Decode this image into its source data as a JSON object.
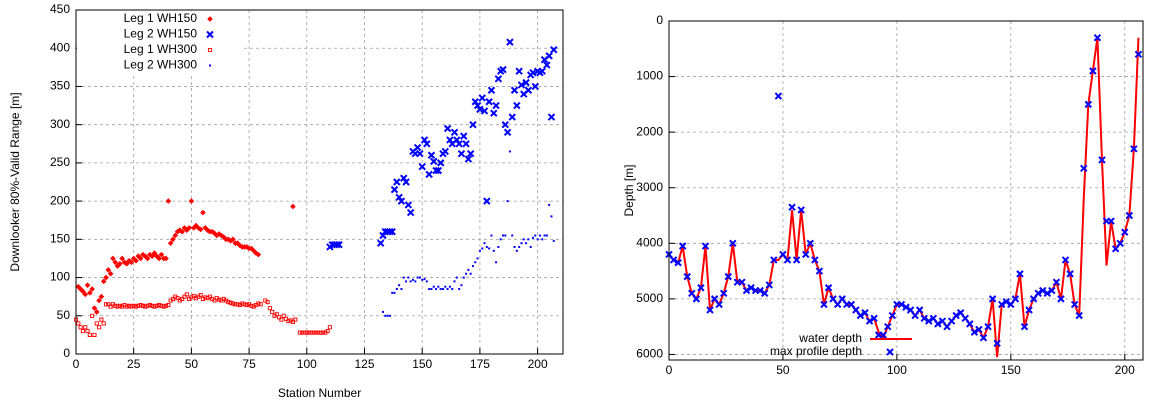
{
  "chart_data": [
    {
      "type": "scatter",
      "x_label": "Station Number",
      "y_label": "Downlooker 80%-Valid Range [m]",
      "xlim": [
        0,
        211
      ],
      "ylim": [
        0,
        450
      ],
      "xticks": [
        0,
        25,
        50,
        75,
        100,
        125,
        150,
        175,
        200
      ],
      "yticks": [
        0,
        50,
        100,
        150,
        200,
        250,
        300,
        350,
        400,
        450
      ],
      "grid": true,
      "legend": "upper left",
      "series": [
        {
          "name": "Leg 1 WH150",
          "color": "#ff0000",
          "marker": "diamond",
          "x": [
            1,
            2,
            3,
            4,
            5,
            6,
            7,
            8,
            9,
            10,
            11,
            12,
            13,
            14,
            15,
            16,
            17,
            18,
            19,
            20,
            21,
            22,
            23,
            24,
            25,
            26,
            27,
            28,
            29,
            30,
            31,
            32,
            33,
            34,
            35,
            36,
            37,
            38,
            39,
            40,
            41,
            42,
            43,
            44,
            45,
            46,
            47,
            48,
            49,
            50,
            51,
            52,
            53,
            54,
            55,
            56,
            57,
            58,
            59,
            60,
            61,
            62,
            63,
            64,
            65,
            66,
            67,
            68,
            69,
            70,
            71,
            72,
            73,
            74,
            75,
            76,
            77,
            78,
            79,
            94
          ],
          "values": [
            88,
            85,
            82,
            78,
            90,
            80,
            85,
            60,
            55,
            70,
            75,
            95,
            100,
            110,
            105,
            125,
            120,
            115,
            118,
            125,
            120,
            118,
            122,
            120,
            125,
            122,
            128,
            125,
            130,
            128,
            125,
            130,
            128,
            132,
            128,
            125,
            130,
            125,
            125,
            200,
            145,
            150,
            155,
            160,
            162,
            160,
            165,
            162,
            165,
            200,
            165,
            168,
            165,
            163,
            185,
            165,
            162,
            160,
            160,
            158,
            155,
            157,
            155,
            153,
            150,
            150,
            148,
            150,
            145,
            145,
            142,
            140,
            140,
            140,
            138,
            138,
            135,
            132,
            130,
            193
          ]
        },
        {
          "name": "Leg 2 WH150",
          "color": "#0000ff",
          "marker": "x",
          "x": [
            110,
            111,
            112,
            113,
            114,
            132,
            133,
            134,
            135,
            136,
            137,
            138,
            139,
            140,
            141,
            142,
            143,
            144,
            145,
            146,
            147,
            148,
            149,
            150,
            151,
            152,
            153,
            154,
            155,
            156,
            157,
            158,
            159,
            160,
            161,
            162,
            163,
            164,
            165,
            166,
            167,
            168,
            169,
            170,
            171,
            172,
            173,
            174,
            175,
            176,
            177,
            178,
            179,
            180,
            181,
            182,
            183,
            184,
            185,
            186,
            187,
            188,
            189,
            190,
            191,
            192,
            193,
            194,
            195,
            196,
            197,
            198,
            199,
            200,
            201,
            202,
            203,
            204,
            205,
            206,
            207
          ],
          "values": [
            140,
            143,
            143,
            143,
            143,
            145,
            155,
            160,
            160,
            160,
            160,
            215,
            225,
            205,
            200,
            230,
            225,
            195,
            185,
            265,
            262,
            270,
            262,
            245,
            280,
            275,
            235,
            260,
            252,
            240,
            240,
            250,
            262,
            265,
            295,
            280,
            275,
            290,
            280,
            275,
            262,
            285,
            275,
            255,
            262,
            300,
            330,
            325,
            320,
            335,
            318,
            200,
            330,
            345,
            315,
            325,
            360,
            370,
            372,
            300,
            290,
            408,
            310,
            345,
            325,
            370,
            352,
            340,
            355,
            345,
            365,
            368,
            350,
            370,
            368,
            370,
            385,
            378,
            390,
            310,
            398
          ]
        },
        {
          "name": "Leg 1 WH300",
          "color": "#ff0000",
          "marker": "square",
          "x": [
            0,
            1,
            2,
            3,
            4,
            5,
            6,
            7,
            8,
            9,
            10,
            11,
            12,
            13,
            14,
            15,
            16,
            17,
            18,
            19,
            20,
            21,
            22,
            23,
            24,
            25,
            26,
            27,
            28,
            29,
            30,
            31,
            32,
            33,
            34,
            35,
            36,
            37,
            38,
            39,
            40,
            41,
            42,
            43,
            44,
            45,
            46,
            47,
            48,
            49,
            50,
            51,
            52,
            53,
            54,
            55,
            56,
            57,
            58,
            59,
            60,
            61,
            62,
            63,
            64,
            65,
            66,
            67,
            68,
            69,
            70,
            71,
            72,
            73,
            74,
            75,
            76,
            77,
            78,
            79,
            80,
            82,
            83,
            84,
            85,
            86,
            87,
            88,
            89,
            90,
            91,
            92,
            93,
            94,
            95,
            97,
            98,
            99,
            100,
            101,
            102,
            103,
            104,
            105,
            106,
            107,
            108,
            109,
            110
          ],
          "values": [
            45,
            40,
            35,
            30,
            35,
            30,
            25,
            50,
            25,
            40,
            35,
            45,
            40,
            65,
            65,
            62,
            65,
            63,
            62,
            63,
            62,
            64,
            62,
            63,
            62,
            63,
            62,
            63,
            64,
            63,
            62,
            63,
            64,
            63,
            62,
            63,
            64,
            63,
            62,
            63,
            64,
            70,
            72,
            75,
            73,
            70,
            72,
            75,
            78,
            72,
            74,
            76,
            73,
            75,
            77,
            72,
            74,
            73,
            75,
            72,
            70,
            73,
            71,
            70,
            72,
            70,
            68,
            67,
            66,
            65,
            65,
            64,
            66,
            65,
            64,
            65,
            63,
            62,
            64,
            66,
            65,
            70,
            68,
            60,
            55,
            50,
            52,
            48,
            45,
            50,
            46,
            43,
            44,
            42,
            45,
            28,
            28,
            28,
            28,
            28,
            28,
            28,
            28,
            28,
            28,
            28,
            28,
            30,
            35
          ]
        },
        {
          "name": "Leg 2 WH300",
          "color": "#0000ff",
          "marker": "dot",
          "x": [
            133,
            134,
            135,
            136,
            137,
            138,
            139,
            140,
            141,
            142,
            143,
            144,
            145,
            146,
            147,
            148,
            149,
            150,
            151,
            152,
            153,
            154,
            155,
            156,
            157,
            158,
            159,
            160,
            161,
            162,
            163,
            164,
            165,
            166,
            167,
            168,
            169,
            170,
            171,
            172,
            173,
            174,
            175,
            176,
            177,
            178,
            179,
            180,
            181,
            182,
            183,
            184,
            185,
            186,
            187,
            188,
            189,
            190,
            191,
            192,
            193,
            194,
            195,
            196,
            197,
            198,
            199,
            200,
            201,
            202,
            203,
            204,
            205,
            206,
            207
          ],
          "values": [
            55,
            50,
            50,
            50,
            80,
            80,
            85,
            90,
            85,
            100,
            95,
            100,
            95,
            97,
            95,
            100,
            100,
            97,
            98,
            95,
            85,
            85,
            88,
            85,
            88,
            85,
            85,
            88,
            85,
            88,
            85,
            95,
            100,
            85,
            90,
            100,
            105,
            110,
            105,
            115,
            120,
            125,
            135,
            138,
            145,
            140,
            138,
            155,
            135,
            120,
            140,
            150,
            155,
            155,
            200,
            265,
            155,
            140,
            135,
            140,
            145,
            150,
            145,
            150,
            140,
            152,
            155,
            150,
            155,
            150,
            155,
            155,
            195,
            180,
            148
          ]
        }
      ]
    },
    {
      "type": "line",
      "y_label": "Depth [m]",
      "xlim": [
        0,
        208
      ],
      "ylim": [
        6100,
        0
      ],
      "xticks": [
        0,
        50,
        100,
        150,
        200
      ],
      "yticks": [
        0,
        1000,
        2000,
        3000,
        4000,
        5000,
        6000
      ],
      "grid": true,
      "legend": "lower center",
      "x": [
        0,
        2,
        4,
        6,
        8,
        10,
        12,
        14,
        16,
        18,
        20,
        22,
        24,
        26,
        28,
        30,
        32,
        34,
        36,
        38,
        40,
        42,
        44,
        46,
        48,
        50,
        52,
        54,
        56,
        58,
        60,
        62,
        64,
        66,
        68,
        70,
        72,
        74,
        76,
        78,
        80,
        82,
        84,
        86,
        88,
        90,
        92,
        94,
        96,
        98,
        100,
        102,
        104,
        106,
        108,
        110,
        112,
        114,
        116,
        118,
        120,
        122,
        124,
        126,
        128,
        130,
        132,
        134,
        136,
        138,
        140,
        142,
        144,
        146,
        148,
        150,
        152,
        154,
        156,
        158,
        160,
        162,
        164,
        166,
        168,
        170,
        172,
        174,
        176,
        178,
        180,
        182,
        184,
        186,
        188,
        190,
        192,
        194,
        196,
        198,
        200,
        202,
        204,
        206
      ],
      "series": [
        {
          "name": "water depth",
          "color": "#ff0000",
          "mode": "line",
          "values": [
            4200,
            4300,
            4350,
            4050,
            4600,
            4900,
            5000,
            4800,
            4050,
            5200,
            5000,
            5100,
            4900,
            4600,
            4000,
            4700,
            4700,
            4850,
            4800,
            4850,
            4850,
            4900,
            4750,
            4300,
            4300,
            4200,
            4300,
            3400,
            4300,
            3400,
            4200,
            4000,
            4300,
            4500,
            5100,
            4800,
            5000,
            5100,
            5000,
            5100,
            5100,
            5200,
            5300,
            5250,
            5400,
            5350,
            5600,
            5700,
            5500,
            5300,
            5100,
            5100,
            5150,
            5200,
            5300,
            5200,
            5350,
            5400,
            5350,
            5450,
            5400,
            5500,
            5400,
            5300,
            5250,
            5350,
            5450,
            5600,
            5550,
            5700,
            5500,
            5000,
            6050,
            5100,
            5050,
            5100,
            5000,
            4550,
            5500,
            5200,
            5000,
            4900,
            4850,
            4900,
            4850,
            4700,
            5000,
            4300,
            4550,
            5100,
            5300,
            3200,
            1500,
            900,
            300,
            2500,
            4400,
            3600,
            4100,
            4000,
            3800,
            3500,
            2300,
            300
          ]
        },
        {
          "name": "max profile depth",
          "color": "#0000ff",
          "mode": "points",
          "marker": "x",
          "values": [
            4200,
            4300,
            4350,
            4050,
            4600,
            4900,
            5000,
            4800,
            4050,
            5200,
            5000,
            5100,
            4900,
            4600,
            4000,
            4700,
            4700,
            4850,
            4800,
            4850,
            4850,
            4900,
            4750,
            4300,
            1350,
            4200,
            4300,
            3350,
            4300,
            3400,
            4200,
            4000,
            4300,
            4500,
            5100,
            4800,
            5000,
            5100,
            5000,
            5100,
            5100,
            5200,
            5300,
            5250,
            5400,
            5350,
            5650,
            5650,
            5500,
            5300,
            5100,
            5100,
            5150,
            5200,
            5300,
            5200,
            5350,
            5400,
            5350,
            5450,
            5400,
            5500,
            5400,
            5300,
            5250,
            5350,
            5450,
            5600,
            5550,
            5700,
            5500,
            5000,
            5800,
            5100,
            5050,
            5100,
            5000,
            4550,
            5500,
            5200,
            5000,
            4900,
            4850,
            4900,
            4850,
            4700,
            5000,
            4300,
            4550,
            5100,
            5300,
            2650,
            1500,
            900,
            300,
            2500,
            3600,
            3600,
            4100,
            4000,
            3800,
            3500,
            2300,
            600
          ]
        }
      ]
    }
  ]
}
